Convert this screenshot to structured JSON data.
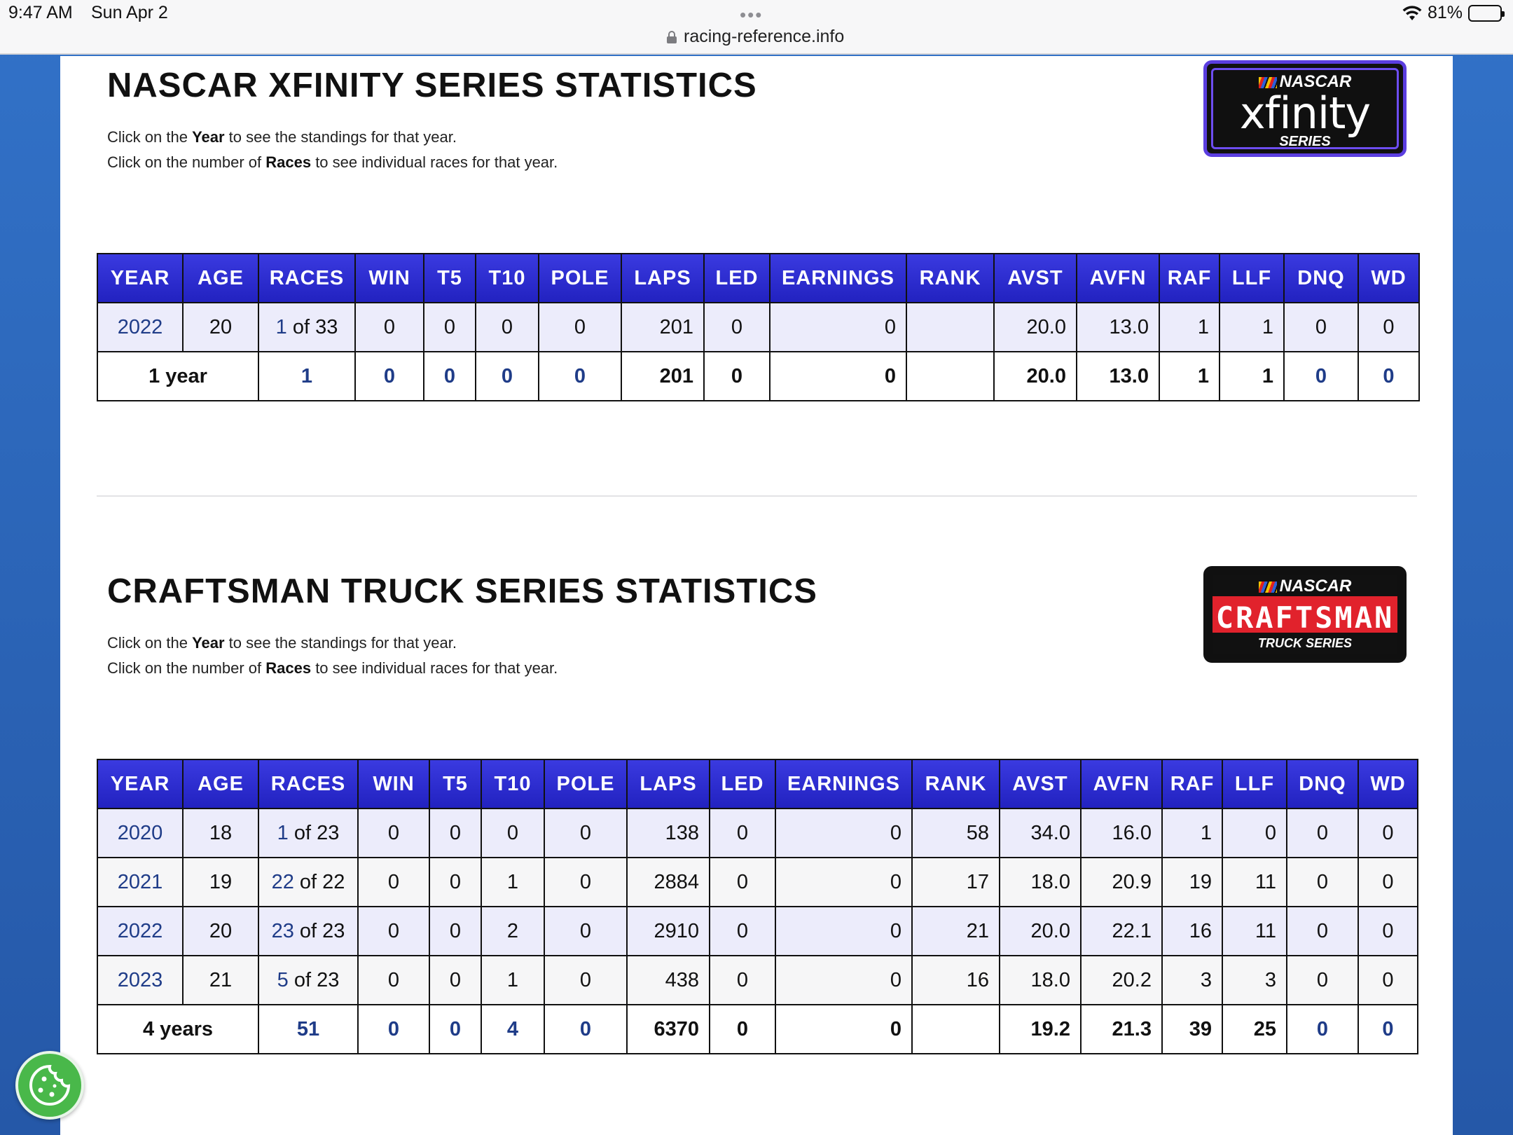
{
  "status_bar": {
    "time": "9:47 AM",
    "date": "Sun Apr 2",
    "dots": "•••",
    "url": "racing-reference.info",
    "battery": "81%",
    "battery_level": 0.81
  },
  "xfinity": {
    "title": "NASCAR XFINITY SERIES STATISTICS",
    "instr1_pre": "Click on the ",
    "instr1_bold": "Year",
    "instr1_post": " to see the standings for that year.",
    "instr2_pre": "Click on the number of ",
    "instr2_bold": "Races",
    "instr2_post": " to see individual races for that year.",
    "logo": {
      "top": "NASCAR",
      "main": "xfinity",
      "sub": "SERIES"
    },
    "headers": [
      "YEAR",
      "AGE",
      "RACES",
      "WIN",
      "T5",
      "T10",
      "POLE",
      "LAPS",
      "LED",
      "EARNINGS",
      "RANK",
      "AVST",
      "AVFN",
      "RAF",
      "LLF",
      "DNQ",
      "WD"
    ],
    "rows": [
      {
        "year": "2022",
        "age": "20",
        "races_n": "1",
        "races_of": " of 33",
        "win": "0",
        "t5": "0",
        "t10": "0",
        "pole": "0",
        "laps": "201",
        "led": "0",
        "earnings": "0",
        "rank": "",
        "avst": "20.0",
        "avfn": "13.0",
        "raf": "1",
        "llf": "1",
        "dnq": "0",
        "wd": "0"
      }
    ],
    "total": {
      "label": "1 year",
      "races": "1",
      "win": "0",
      "t5": "0",
      "t10": "0",
      "pole": "0",
      "laps": "201",
      "led": "0",
      "earnings": "0",
      "rank": "",
      "avst": "20.0",
      "avfn": "13.0",
      "raf": "1",
      "llf": "1",
      "dnq": "0",
      "wd": "0"
    }
  },
  "truck": {
    "title": "CRAFTSMAN TRUCK SERIES STATISTICS",
    "instr1_pre": "Click on the ",
    "instr1_bold": "Year",
    "instr1_post": " to see the standings for that year.",
    "instr2_pre": "Click on the number of ",
    "instr2_bold": "Races",
    "instr2_post": " to see individual races for that year.",
    "logo": {
      "top": "NASCAR",
      "main": "CRAFTSMAN",
      "sub": "TRUCK SERIES"
    },
    "headers": [
      "YEAR",
      "AGE",
      "RACES",
      "WIN",
      "T5",
      "T10",
      "POLE",
      "LAPS",
      "LED",
      "EARNINGS",
      "RANK",
      "AVST",
      "AVFN",
      "RAF",
      "LLF",
      "DNQ",
      "WD"
    ],
    "rows": [
      {
        "year": "2020",
        "age": "18",
        "races_n": "1",
        "races_of": " of 23",
        "win": "0",
        "t5": "0",
        "t10": "0",
        "pole": "0",
        "laps": "138",
        "led": "0",
        "earnings": "0",
        "rank": "58",
        "avst": "34.0",
        "avfn": "16.0",
        "raf": "1",
        "llf": "0",
        "dnq": "0",
        "wd": "0"
      },
      {
        "year": "2021",
        "age": "19",
        "races_n": "22",
        "races_of": " of 22",
        "win": "0",
        "t5": "0",
        "t10": "1",
        "pole": "0",
        "laps": "2884",
        "led": "0",
        "earnings": "0",
        "rank": "17",
        "avst": "18.0",
        "avfn": "20.9",
        "raf": "19",
        "llf": "11",
        "dnq": "0",
        "wd": "0"
      },
      {
        "year": "2022",
        "age": "20",
        "races_n": "23",
        "races_of": " of 23",
        "win": "0",
        "t5": "0",
        "t10": "2",
        "pole": "0",
        "laps": "2910",
        "led": "0",
        "earnings": "0",
        "rank": "21",
        "avst": "20.0",
        "avfn": "22.1",
        "raf": "16",
        "llf": "11",
        "dnq": "0",
        "wd": "0"
      },
      {
        "year": "2023",
        "age": "21",
        "races_n": "5",
        "races_of": " of 23",
        "win": "0",
        "t5": "0",
        "t10": "1",
        "pole": "0",
        "laps": "438",
        "led": "0",
        "earnings": "0",
        "rank": "16",
        "avst": "18.0",
        "avfn": "20.2",
        "raf": "3",
        "llf": "3",
        "dnq": "0",
        "wd": "0"
      }
    ],
    "total": {
      "label": "4 years",
      "races": "51",
      "win": "0",
      "t5": "0",
      "t10": "4",
      "pole": "0",
      "laps": "6370",
      "led": "0",
      "earnings": "0",
      "rank": "",
      "avst": "19.2",
      "avfn": "21.3",
      "raf": "39",
      "llf": "25",
      "dnq": "0",
      "wd": "0"
    }
  },
  "colors": {
    "header_blue": "#2a2ad0",
    "link_blue": "#1f3c88",
    "background_blue": "#2a62b4",
    "cookie_green": "#49b84a"
  },
  "icons": [
    "lock-icon",
    "wifi-icon",
    "battery-icon",
    "cookie-icon"
  ]
}
